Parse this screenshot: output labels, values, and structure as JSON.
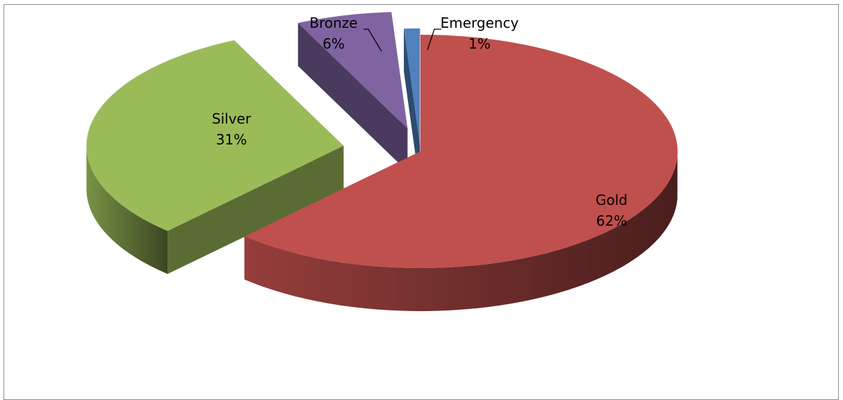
{
  "chart_data": {
    "type": "pie",
    "variant": "3d-exploded",
    "title": "",
    "legend": "none",
    "slices": [
      {
        "label": "Gold",
        "value": 62,
        "percent_label": "62%",
        "color": "#c0504d"
      },
      {
        "label": "Silver",
        "value": 31,
        "percent_label": "31%",
        "color": "#9bbb59"
      },
      {
        "label": "Bronze",
        "value": 6,
        "percent_label": "6%",
        "color": "#8064a2"
      },
      {
        "label": "Emergency",
        "value": 1,
        "percent_label": "1%",
        "color": "#4f81bd"
      }
    ]
  }
}
